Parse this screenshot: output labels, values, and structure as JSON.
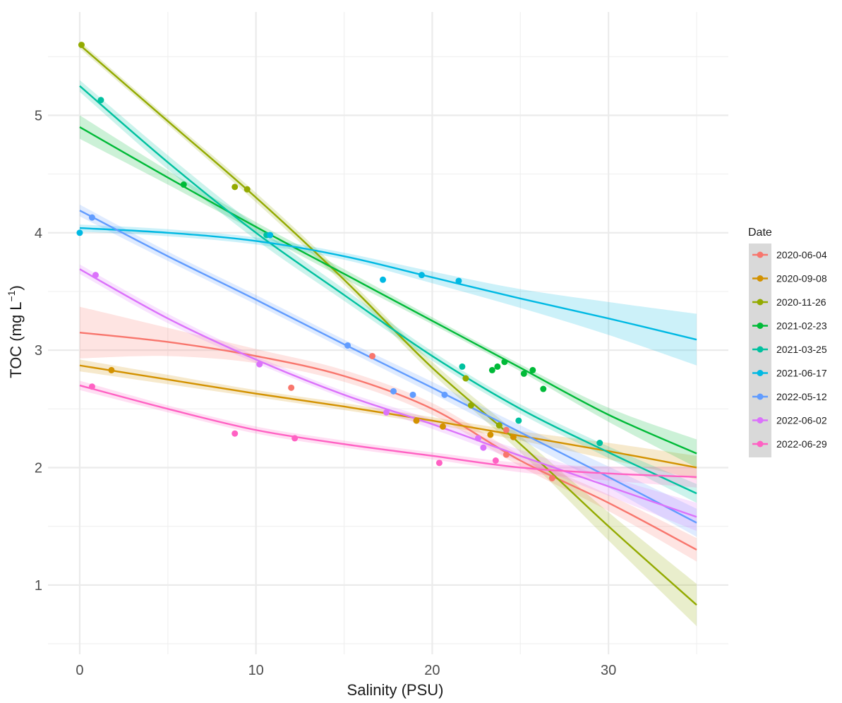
{
  "chart_data": {
    "type": "scatter",
    "xlabel": "Salinity (PSU)",
    "ylabel": "TOC (mg L",
    "ylabel_superscript": "−1",
    "ylabel_suffix": ")",
    "xlim": [
      -1.8,
      36.8
    ],
    "ylim": [
      0.41,
      5.88
    ],
    "x_ticks": [
      0,
      10,
      20,
      30
    ],
    "x_tick_labels": [
      "0",
      "10",
      "20",
      "30"
    ],
    "x_minor_gridlines": [
      5,
      15,
      25,
      35
    ],
    "y_ticks": [
      1,
      2,
      3,
      4,
      5
    ],
    "y_tick_labels": [
      "1",
      "2",
      "3",
      "4",
      "5"
    ],
    "y_minor_gridlines": [
      0.5,
      1.5,
      2.5,
      3.5,
      4.5,
      5.5
    ],
    "grid": true,
    "trend": "smoothed fit with confidence band",
    "legend": {
      "title": "Date",
      "position": "right"
    },
    "series": [
      {
        "name": "2020-06-04",
        "color": "#F8766D",
        "points": [
          [
            16.6,
            2.95
          ],
          [
            12.0,
            2.68
          ],
          [
            24.2,
            2.32
          ],
          [
            24.2,
            2.11
          ],
          [
            26.8,
            1.91
          ]
        ],
        "fit": [
          [
            0,
            3.15
          ],
          [
            5,
            3.07
          ],
          [
            10,
            2.95
          ],
          [
            15,
            2.78
          ],
          [
            20,
            2.5
          ],
          [
            25,
            2.06
          ],
          [
            30,
            1.7
          ],
          [
            35,
            1.3
          ]
        ],
        "band": [
          0.22,
          0.12,
          0.06,
          0.05,
          0.05,
          0.05,
          0.07,
          0.1
        ]
      },
      {
        "name": "2020-09-08",
        "color": "#D39200",
        "points": [
          [
            1.8,
            2.83
          ],
          [
            19.1,
            2.4
          ],
          [
            20.6,
            2.35
          ],
          [
            23.3,
            2.28
          ],
          [
            24.6,
            2.26
          ]
        ],
        "fit": [
          [
            0,
            2.87
          ],
          [
            5,
            2.75
          ],
          [
            10,
            2.63
          ],
          [
            15,
            2.52
          ],
          [
            20,
            2.4
          ],
          [
            25,
            2.27
          ],
          [
            30,
            2.14
          ],
          [
            35,
            2.0
          ]
        ],
        "band": [
          0.05,
          0.04,
          0.03,
          0.03,
          0.03,
          0.04,
          0.07,
          0.1
        ]
      },
      {
        "name": "2020-11-26",
        "color": "#93AA00",
        "points": [
          [
            0.1,
            5.6
          ],
          [
            8.8,
            4.39
          ],
          [
            9.5,
            4.37
          ],
          [
            21.9,
            2.76
          ],
          [
            22.2,
            2.53
          ],
          [
            23.8,
            2.36
          ]
        ],
        "fit": [
          [
            0,
            5.6
          ],
          [
            5,
            4.95
          ],
          [
            10,
            4.3
          ],
          [
            15,
            3.6
          ],
          [
            20,
            2.85
          ],
          [
            25,
            2.2
          ],
          [
            30,
            1.5
          ],
          [
            35,
            0.83
          ]
        ],
        "band": [
          0.03,
          0.03,
          0.04,
          0.04,
          0.05,
          0.07,
          0.12,
          0.18
        ]
      },
      {
        "name": "2021-02-23",
        "color": "#00BA38",
        "points": [
          [
            5.9,
            4.41
          ],
          [
            23.4,
            2.83
          ],
          [
            23.7,
            2.86
          ],
          [
            24.1,
            2.9
          ],
          [
            25.2,
            2.8
          ],
          [
            25.7,
            2.83
          ],
          [
            26.3,
            2.67
          ]
        ],
        "fit": [
          [
            0,
            4.9
          ],
          [
            5,
            4.47
          ],
          [
            10,
            4.05
          ],
          [
            15,
            3.65
          ],
          [
            20,
            3.25
          ],
          [
            25,
            2.85
          ],
          [
            30,
            2.45
          ],
          [
            35,
            2.12
          ]
        ],
        "band": [
          0.1,
          0.06,
          0.04,
          0.04,
          0.03,
          0.03,
          0.06,
          0.12
        ]
      },
      {
        "name": "2021-03-25",
        "color": "#00C19F",
        "points": [
          [
            1.2,
            5.13
          ],
          [
            10.6,
            3.98
          ],
          [
            21.7,
            2.86
          ],
          [
            24.9,
            2.4
          ],
          [
            29.5,
            2.21
          ]
        ],
        "fit": [
          [
            0,
            5.25
          ],
          [
            5,
            4.6
          ],
          [
            10,
            4.0
          ],
          [
            15,
            3.47
          ],
          [
            20,
            2.95
          ],
          [
            25,
            2.5
          ],
          [
            30,
            2.13
          ],
          [
            35,
            1.78
          ]
        ],
        "band": [
          0.05,
          0.06,
          0.06,
          0.05,
          0.04,
          0.04,
          0.05,
          0.08
        ]
      },
      {
        "name": "2021-06-17",
        "color": "#00B9E3",
        "points": [
          [
            0.0,
            4.0
          ],
          [
            10.8,
            3.98
          ],
          [
            17.2,
            3.6
          ],
          [
            19.4,
            3.64
          ],
          [
            21.5,
            3.59
          ]
        ],
        "fit": [
          [
            0,
            4.04
          ],
          [
            5,
            4.0
          ],
          [
            10,
            3.93
          ],
          [
            15,
            3.8
          ],
          [
            20,
            3.62
          ],
          [
            25,
            3.44
          ],
          [
            30,
            3.27
          ],
          [
            35,
            3.09
          ]
        ],
        "band": [
          0.03,
          0.03,
          0.03,
          0.03,
          0.05,
          0.08,
          0.14,
          0.22
        ]
      },
      {
        "name": "2022-05-12",
        "color": "#619CFF",
        "points": [
          [
            0.7,
            4.13
          ],
          [
            15.2,
            3.04
          ],
          [
            17.8,
            2.65
          ],
          [
            18.9,
            2.62
          ],
          [
            20.7,
            2.62
          ]
        ],
        "fit": [
          [
            0,
            4.19
          ],
          [
            5,
            3.8
          ],
          [
            10,
            3.43
          ],
          [
            15,
            3.05
          ],
          [
            20,
            2.68
          ],
          [
            25,
            2.3
          ],
          [
            30,
            1.92
          ],
          [
            35,
            1.53
          ]
        ],
        "band": [
          0.05,
          0.04,
          0.04,
          0.04,
          0.05,
          0.06,
          0.09,
          0.12
        ]
      },
      {
        "name": "2022-06-02",
        "color": "#DB72FB",
        "points": [
          [
            0.9,
            3.64
          ],
          [
            10.2,
            2.88
          ],
          [
            17.4,
            2.47
          ],
          [
            22.6,
            2.25
          ],
          [
            22.9,
            2.17
          ]
        ],
        "fit": [
          [
            0,
            3.69
          ],
          [
            5,
            3.27
          ],
          [
            10,
            2.92
          ],
          [
            15,
            2.62
          ],
          [
            20,
            2.37
          ],
          [
            25,
            2.1
          ],
          [
            30,
            1.84
          ],
          [
            35,
            1.58
          ]
        ],
        "band": [
          0.04,
          0.04,
          0.03,
          0.03,
          0.04,
          0.05,
          0.08,
          0.12
        ]
      },
      {
        "name": "2022-06-29",
        "color": "#FF61C3",
        "points": [
          [
            0.7,
            2.69
          ],
          [
            8.8,
            2.29
          ],
          [
            12.2,
            2.25
          ],
          [
            20.4,
            2.04
          ],
          [
            23.6,
            2.06
          ]
        ],
        "fit": [
          [
            0,
            2.7
          ],
          [
            5,
            2.5
          ],
          [
            10,
            2.32
          ],
          [
            15,
            2.2
          ],
          [
            20,
            2.1
          ],
          [
            25,
            2.0
          ],
          [
            30,
            1.95
          ],
          [
            35,
            1.92
          ]
        ],
        "band": [
          0.04,
          0.03,
          0.03,
          0.03,
          0.03,
          0.04,
          0.06,
          0.09
        ]
      }
    ]
  }
}
